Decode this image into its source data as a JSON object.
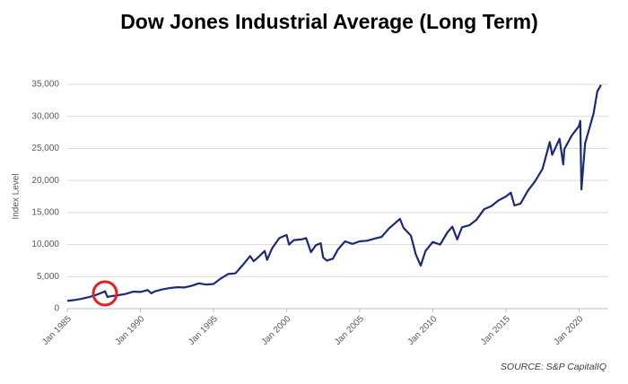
{
  "chart_data": {
    "type": "line",
    "title": "Dow Jones Industrial Average (Long Term)",
    "y_label": "Index Level",
    "source": "SOURCE: S&P CapitalIQ",
    "color": "#1b2a7b",
    "grid": true,
    "xlim": [
      "1985-01",
      "2022-01"
    ],
    "xticks": [
      {
        "value": "1985-01",
        "label": "Jan 1985"
      },
      {
        "value": "1990-01",
        "label": "Jan 1990"
      },
      {
        "value": "1995-01",
        "label": "Jan 1995"
      },
      {
        "value": "2000-01",
        "label": "Jan 2000"
      },
      {
        "value": "2005-01",
        "label": "Jan 2005"
      },
      {
        "value": "2010-01",
        "label": "Jan 2010"
      },
      {
        "value": "2015-01",
        "label": "Jan 2015"
      },
      {
        "value": "2020-01",
        "label": "Jan 2020"
      }
    ],
    "ylim": [
      0,
      35000
    ],
    "yticks": [
      0,
      {
        "value": 5000,
        "label": "5,000"
      },
      {
        "value": 10000,
        "label": "10,000"
      },
      {
        "value": 15000,
        "label": "15,000"
      },
      {
        "value": 20000,
        "label": "20,000"
      },
      {
        "value": 25000,
        "label": "25,000"
      },
      {
        "value": 30000,
        "label": "30,000"
      },
      {
        "value": 35000,
        "label": "35,000"
      }
    ],
    "x": [
      "1985-01",
      "1985-07",
      "1986-01",
      "1986-07",
      "1987-01",
      "1987-08",
      "1987-10",
      "1988-01",
      "1988-07",
      "1989-01",
      "1989-07",
      "1990-01",
      "1990-07",
      "1990-10",
      "1991-01",
      "1991-07",
      "1992-01",
      "1992-07",
      "1993-01",
      "1993-07",
      "1994-01",
      "1994-07",
      "1995-01",
      "1995-07",
      "1996-01",
      "1996-07",
      "1997-01",
      "1997-07",
      "1997-10",
      "1998-01",
      "1998-07",
      "1998-09",
      "1999-01",
      "1999-07",
      "2000-01",
      "2000-03",
      "2000-07",
      "2001-01",
      "2001-05",
      "2001-09",
      "2002-01",
      "2002-05",
      "2002-07",
      "2002-10",
      "2003-03",
      "2003-07",
      "2004-01",
      "2004-07",
      "2005-01",
      "2005-07",
      "2006-01",
      "2006-07",
      "2007-01",
      "2007-07",
      "2007-10",
      "2008-01",
      "2008-07",
      "2008-11",
      "2009-03",
      "2009-07",
      "2010-01",
      "2010-07",
      "2011-01",
      "2011-05",
      "2011-09",
      "2012-01",
      "2012-07",
      "2013-01",
      "2013-07",
      "2014-01",
      "2014-07",
      "2015-01",
      "2015-05",
      "2015-08",
      "2016-01",
      "2016-07",
      "2017-01",
      "2017-07",
      "2018-01",
      "2018-03",
      "2018-09",
      "2018-12",
      "2019-01",
      "2019-07",
      "2020-01",
      "2020-02",
      "2020-03",
      "2020-06",
      "2020-09",
      "2021-01",
      "2021-04",
      "2021-07"
    ],
    "values": [
      1200,
      1350,
      1550,
      1800,
      2150,
      2700,
      1800,
      1950,
      2100,
      2300,
      2650,
      2600,
      2900,
      2400,
      2700,
      3000,
      3200,
      3350,
      3300,
      3550,
      3950,
      3750,
      3850,
      4700,
      5400,
      5500,
      6800,
      8200,
      7400,
      7900,
      9000,
      7600,
      9400,
      11000,
      11500,
      10000,
      10700,
      10800,
      11000,
      8800,
      9900,
      10200,
      8000,
      7500,
      7800,
      9200,
      10500,
      10100,
      10500,
      10600,
      10900,
      11200,
      12500,
      13500,
      14000,
      12600,
      11400,
      8500,
      6700,
      9000,
      10400,
      10000,
      11900,
      12800,
      10800,
      12700,
      13000,
      13900,
      15500,
      16000,
      16900,
      17500,
      18100,
      16100,
      16400,
      18400,
      19900,
      21800,
      26000,
      24000,
      26500,
      22500,
      24900,
      27000,
      28500,
      29300,
      18600,
      25800,
      27800,
      30500,
      33900,
      34900
    ]
  }
}
